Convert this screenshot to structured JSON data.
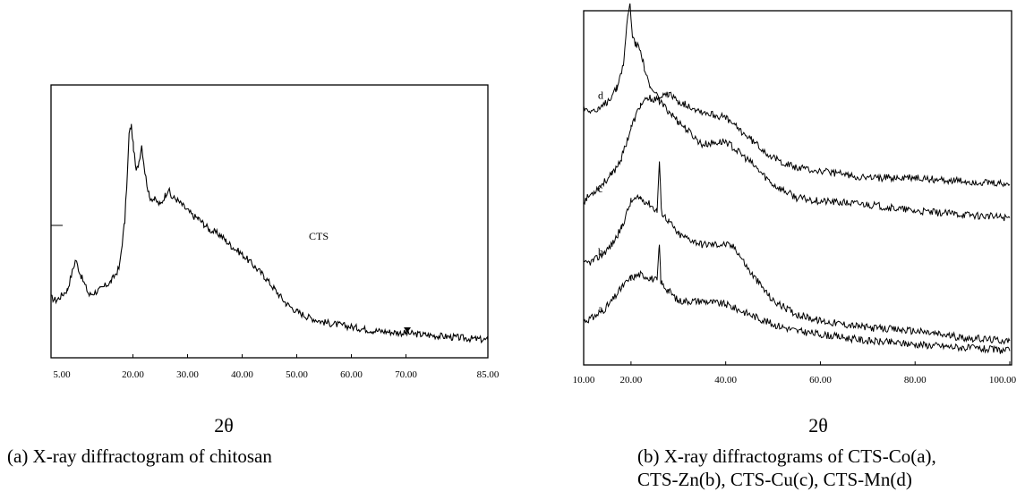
{
  "chart_data": [
    {
      "type": "line",
      "caption": "(a) X-ray diffractogram of chitosan",
      "xlabel": "2θ",
      "ylabel": "",
      "xlim": [
        5,
        85
      ],
      "ylim": [
        0,
        1
      ],
      "x_ticks": [
        "5.00",
        "20.00",
        "30.00",
        "40.00",
        "50.00",
        "60.00",
        "70.00",
        "85.00"
      ],
      "annotations": [
        {
          "text": "CTS",
          "x": 62,
          "y": 0.52
        }
      ],
      "series": [
        {
          "name": "CTS",
          "x": [
            5,
            6,
            8,
            9.5,
            10.5,
            12,
            14,
            16,
            17.5,
            18.5,
            19,
            19.3,
            19.7,
            20.1,
            20.6,
            21.1,
            21.6,
            22.2,
            23,
            24,
            25,
            26,
            26.5,
            27,
            28,
            29,
            30,
            31,
            32,
            33,
            34,
            35,
            36,
            37,
            38,
            40,
            42,
            44,
            46,
            48,
            50,
            52,
            55,
            58,
            61,
            64,
            67,
            70,
            73,
            76,
            79,
            82,
            85
          ],
          "y": [
            0.22,
            0.21,
            0.25,
            0.36,
            0.3,
            0.23,
            0.25,
            0.28,
            0.33,
            0.5,
            0.68,
            0.82,
            0.85,
            0.77,
            0.68,
            0.72,
            0.78,
            0.68,
            0.59,
            0.58,
            0.56,
            0.6,
            0.62,
            0.59,
            0.58,
            0.56,
            0.54,
            0.52,
            0.51,
            0.49,
            0.47,
            0.46,
            0.45,
            0.43,
            0.41,
            0.38,
            0.34,
            0.3,
            0.25,
            0.2,
            0.17,
            0.15,
            0.13,
            0.12,
            0.11,
            0.1,
            0.095,
            0.09,
            0.085,
            0.08,
            0.075,
            0.07,
            0.065
          ]
        }
      ]
    },
    {
      "type": "line",
      "caption_line1": "(b) X-ray diffractograms of CTS-Co(a),",
      "caption_line2": "CTS-Zn(b), CTS-Cu(c), CTS-Mn(d)",
      "xlabel": "2θ",
      "ylabel": "",
      "xlim": [
        10,
        100
      ],
      "ylim": [
        0,
        1
      ],
      "x_ticks": [
        "10.00",
        "20.00",
        "40.00",
        "60.00",
        "80.00",
        "100.00"
      ],
      "series": [
        {
          "name": "a",
          "x": [
            10,
            12,
            14,
            16,
            18,
            20,
            22,
            24,
            25.5,
            26,
            26.3,
            26.6,
            28,
            30,
            35,
            40,
            45,
            50,
            55,
            60,
            65,
            70,
            80,
            90,
            100
          ],
          "y": [
            0.1,
            0.11,
            0.13,
            0.16,
            0.2,
            0.23,
            0.24,
            0.23,
            0.22,
            0.33,
            0.22,
            0.21,
            0.19,
            0.16,
            0.16,
            0.15,
            0.12,
            0.09,
            0.07,
            0.06,
            0.05,
            0.04,
            0.03,
            0.02,
            0.01
          ]
        },
        {
          "name": "b",
          "x": [
            10,
            12,
            14,
            16,
            18,
            20,
            22,
            24,
            25.5,
            26,
            26.4,
            26.8,
            28,
            30,
            35,
            40,
            42,
            45,
            50,
            55,
            60,
            70,
            80,
            90,
            100
          ],
          "y": [
            0.27,
            0.28,
            0.3,
            0.33,
            0.38,
            0.46,
            0.47,
            0.45,
            0.43,
            0.58,
            0.43,
            0.42,
            0.4,
            0.36,
            0.33,
            0.33,
            0.32,
            0.25,
            0.16,
            0.12,
            0.1,
            0.08,
            0.07,
            0.05,
            0.04
          ]
        },
        {
          "name": "c",
          "x": [
            10,
            13,
            16,
            18,
            20,
            22,
            24,
            26,
            28,
            30,
            35,
            40,
            45,
            50,
            55,
            60,
            70,
            80,
            90,
            100
          ],
          "y": [
            0.46,
            0.5,
            0.54,
            0.59,
            0.68,
            0.75,
            0.77,
            0.76,
            0.73,
            0.7,
            0.63,
            0.64,
            0.58,
            0.51,
            0.47,
            0.46,
            0.45,
            0.43,
            0.42,
            0.41
          ]
        },
        {
          "name": "d",
          "x": [
            10,
            13,
            15,
            17,
            18.5,
            19.3,
            19.8,
            20.3,
            21,
            22,
            22.8,
            24,
            26,
            28,
            30,
            35,
            40,
            45,
            50,
            55,
            60,
            70,
            80,
            90,
            100
          ],
          "y": [
            0.74,
            0.73,
            0.76,
            0.8,
            0.88,
            1.02,
            1.05,
            0.96,
            0.93,
            0.92,
            0.86,
            0.8,
            0.77,
            0.78,
            0.76,
            0.73,
            0.71,
            0.65,
            0.59,
            0.56,
            0.55,
            0.53,
            0.53,
            0.52,
            0.51
          ]
        }
      ]
    }
  ]
}
